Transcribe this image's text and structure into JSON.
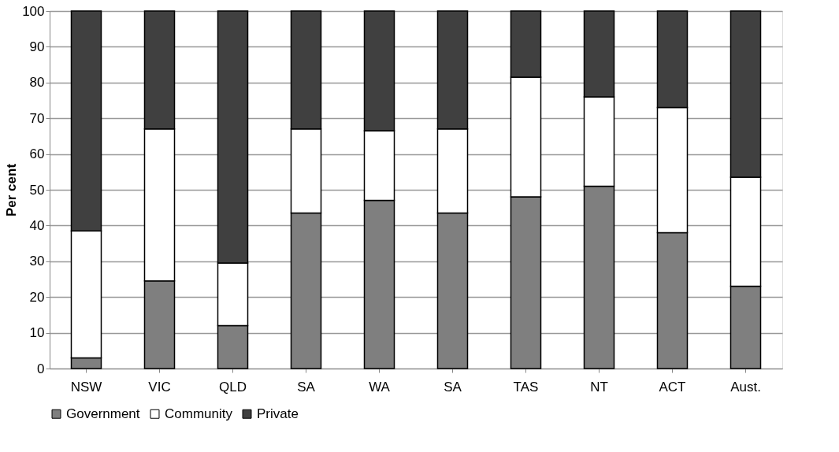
{
  "chart_data": {
    "type": "bar",
    "stacked": true,
    "ylabel": "Per cent",
    "categories": [
      "NSW",
      "VIC",
      "QLD",
      "SA",
      "WA",
      "SA",
      "TAS",
      "NT",
      "ACT",
      "Aust."
    ],
    "series": [
      {
        "name": "Government",
        "color": "#7f7f7f",
        "values": [
          3,
          24.5,
          12,
          43.5,
          47,
          43.5,
          48,
          51,
          38,
          23
        ]
      },
      {
        "name": "Community",
        "color": "#ffffff",
        "values": [
          35.5,
          42.5,
          17.5,
          23.5,
          19.5,
          23.5,
          33.5,
          25,
          35,
          30.5
        ]
      },
      {
        "name": "Private",
        "color": "#404040",
        "values": [
          61.5,
          33,
          70.5,
          33,
          33.5,
          33,
          18.5,
          24,
          27,
          46.5
        ]
      }
    ],
    "ylim": [
      0,
      100
    ],
    "yticks": [
      0,
      10,
      20,
      30,
      40,
      50,
      60,
      70,
      80,
      90,
      100
    ],
    "grid": "y",
    "legend": "bottom"
  }
}
